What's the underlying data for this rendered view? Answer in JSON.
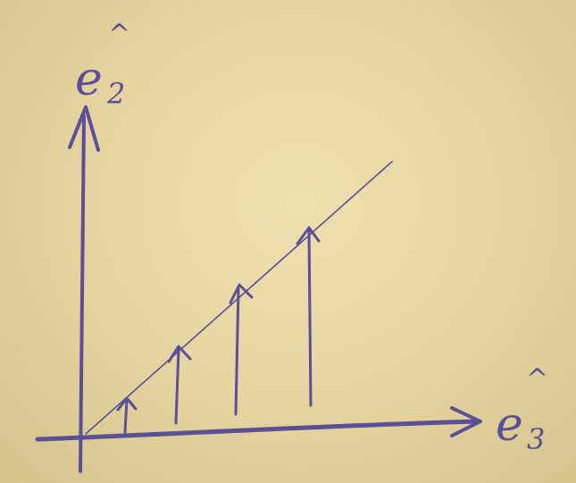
{
  "labels": {
    "vertical_axis": {
      "base": "e",
      "sub": "2",
      "hat": "^"
    },
    "horizontal_axis": {
      "base": "e",
      "sub": "3",
      "hat": "^"
    }
  },
  "diagram": {
    "vertical_arrows_count": 4,
    "ink_color": "#5b4f96",
    "paper_color": "#e3d29f"
  }
}
